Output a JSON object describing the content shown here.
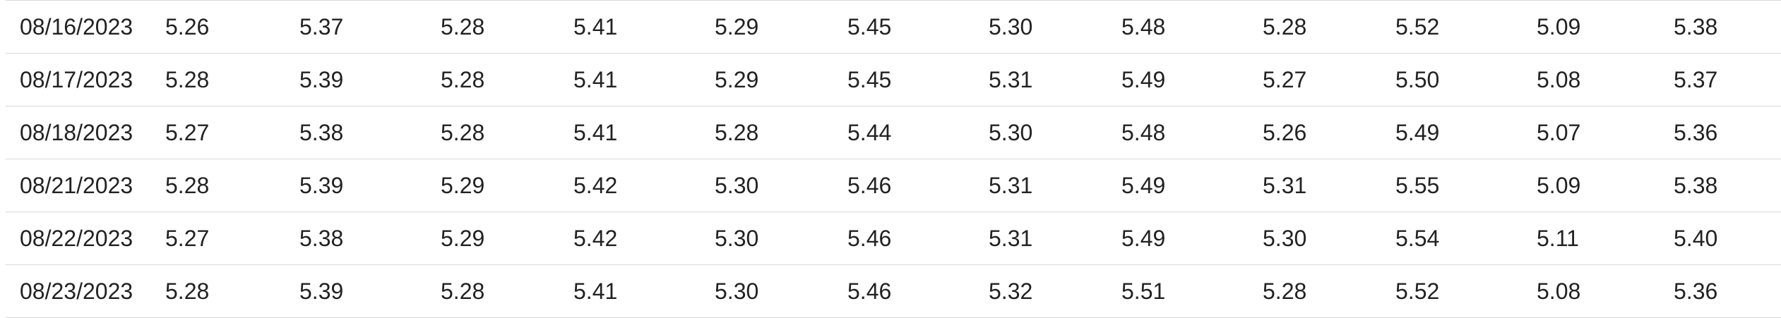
{
  "table": {
    "rows": [
      {
        "date": "08/16/2023",
        "values": [
          "5.26",
          "5.37",
          "5.28",
          "5.41",
          "5.29",
          "5.45",
          "5.30",
          "5.48",
          "5.28",
          "5.52",
          "5.09",
          "5.38"
        ]
      },
      {
        "date": "08/17/2023",
        "values": [
          "5.28",
          "5.39",
          "5.28",
          "5.41",
          "5.29",
          "5.45",
          "5.31",
          "5.49",
          "5.27",
          "5.50",
          "5.08",
          "5.37"
        ]
      },
      {
        "date": "08/18/2023",
        "values": [
          "5.27",
          "5.38",
          "5.28",
          "5.41",
          "5.28",
          "5.44",
          "5.30",
          "5.48",
          "5.26",
          "5.49",
          "5.07",
          "5.36"
        ]
      },
      {
        "date": "08/21/2023",
        "values": [
          "5.28",
          "5.39",
          "5.29",
          "5.42",
          "5.30",
          "5.46",
          "5.31",
          "5.49",
          "5.31",
          "5.55",
          "5.09",
          "5.38"
        ]
      },
      {
        "date": "08/22/2023",
        "values": [
          "5.27",
          "5.38",
          "5.29",
          "5.42",
          "5.30",
          "5.46",
          "5.31",
          "5.49",
          "5.30",
          "5.54",
          "5.11",
          "5.40"
        ]
      },
      {
        "date": "08/23/2023",
        "values": [
          "5.28",
          "5.39",
          "5.28",
          "5.41",
          "5.30",
          "5.46",
          "5.32",
          "5.51",
          "5.28",
          "5.52",
          "5.08",
          "5.36"
        ]
      }
    ]
  }
}
